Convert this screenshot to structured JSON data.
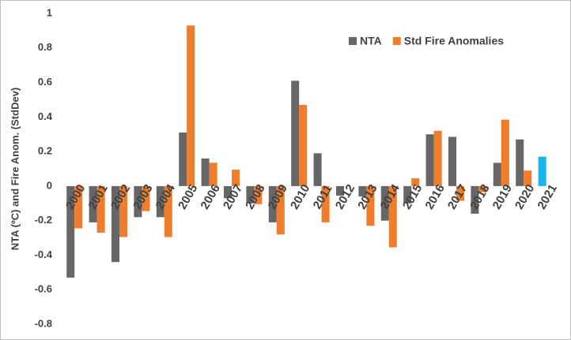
{
  "chart_data": {
    "type": "bar",
    "y_label": "NTA (ºC) and Fire Anom. (StdDev)",
    "categories": [
      "2000",
      "2001",
      "2002",
      "2003",
      "2004",
      "2005",
      "2006",
      "2007",
      "2008",
      "2009",
      "2010",
      "2011",
      "2012",
      "2013",
      "2014",
      "2015",
      "2016",
      "2017",
      "2018",
      "2019",
      "2020",
      "2021"
    ],
    "series": [
      {
        "name": "NTA",
        "color": "#666666",
        "values": [
          -0.53,
          -0.21,
          -0.44,
          -0.18,
          -0.18,
          0.31,
          0.16,
          -0.07,
          -0.1,
          -0.21,
          0.61,
          0.19,
          -0.055,
          -0.06,
          -0.2,
          -0.1,
          0.3,
          0.285,
          -0.16,
          0.135,
          0.27,
          0.17
        ],
        "colors": [
          "#666666",
          "#666666",
          "#666666",
          "#666666",
          "#666666",
          "#666666",
          "#666666",
          "#666666",
          "#666666",
          "#666666",
          "#666666",
          "#666666",
          "#666666",
          "#666666",
          "#666666",
          "#666666",
          "#666666",
          "#666666",
          "#666666",
          "#666666",
          "#666666",
          "#19b4ef"
        ]
      },
      {
        "name": "Std Fire Anomalies",
        "color": "#ef7d2c",
        "values": [
          -0.245,
          -0.27,
          -0.295,
          -0.145,
          -0.295,
          0.93,
          0.135,
          0.095,
          -0.105,
          -0.28,
          0.47,
          -0.21,
          null,
          -0.23,
          -0.355,
          0.045,
          0.32,
          -0.085,
          -0.035,
          0.385,
          0.09,
          null
        ]
      }
    ],
    "ylim": [
      -0.8,
      1
    ],
    "yticks": [
      -0.8,
      -0.6,
      -0.4,
      -0.2,
      0,
      0.2,
      0.4,
      0.6,
      0.8,
      1
    ],
    "grid": false,
    "legend": "top-right"
  }
}
